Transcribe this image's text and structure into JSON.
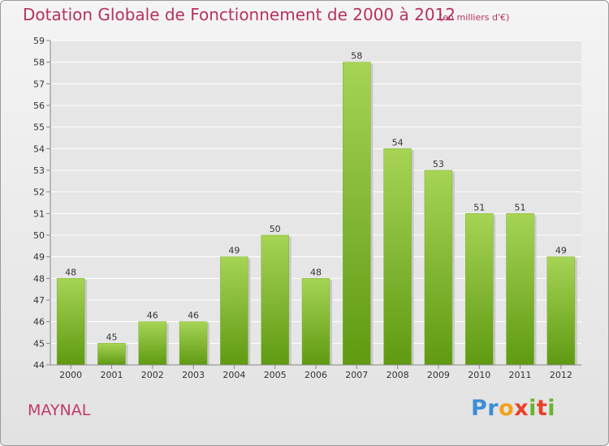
{
  "header": {
    "title": "Dotation Globale de Fonctionnement de 2000 à 2012",
    "subtitle": "(en milliers d'€)"
  },
  "footer": {
    "place": "MAYNAL",
    "logo": "Proxiti"
  },
  "colors": {
    "bar_light": "#a6d455",
    "bar_dark": "#5f9a12",
    "title": "#b5325d",
    "axis": "#888888",
    "grid": "#ffffff"
  },
  "chart_data": {
    "type": "bar",
    "categories": [
      "2000",
      "2001",
      "2002",
      "2003",
      "2004",
      "2005",
      "2006",
      "2007",
      "2008",
      "2009",
      "2010",
      "2011",
      "2012"
    ],
    "values": [
      48,
      45,
      46,
      46,
      49,
      50,
      48,
      58,
      54,
      53,
      51,
      51,
      49
    ],
    "ylim": [
      44,
      59
    ],
    "yticks": [
      44,
      45,
      46,
      47,
      48,
      49,
      50,
      51,
      52,
      53,
      54,
      55,
      56,
      57,
      58,
      59
    ],
    "grid": true,
    "data_labels": true
  }
}
